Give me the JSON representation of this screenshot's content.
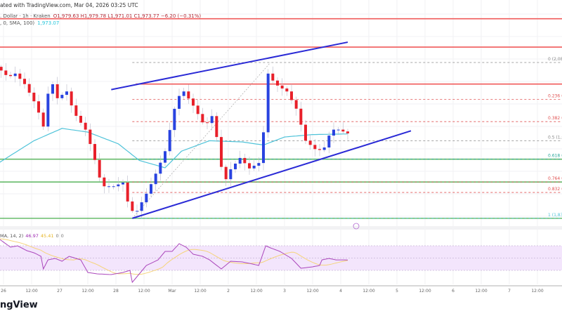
{
  "header": {
    "published": "ated with TradingView.com, Mar 04, 2026 03:25 UTC",
    "symbol": ". Dollar · 1h · Kraken",
    "ohlc": "O1,979.63  H1,979.78  L1,971.01  C1,973.77  −6.20 (−0.31%)",
    "sma_label": ", 0, SMA, 100)",
    "sma_value": "1,973.07"
  },
  "rsi_legend": {
    "label": "MA, 14, 2)",
    "rsi": "46.97",
    "ma": "45.41",
    "v1": "0",
    "v2": "0"
  },
  "logo": "ngView",
  "colors": {
    "up": "#2943e0",
    "down": "#e8202a",
    "sma": "#4fc3d9",
    "trend": "#2a2ad6",
    "resistance": "#f05a5a",
    "support": "#66bb6a",
    "rsi": "#ab47bc",
    "rsi_ma": "#f5d47a",
    "rsi_band": "#f3e5fc"
  },
  "chart_data": {
    "type": "candlestick",
    "timeframe": "1h",
    "x_ticks": [
      "26",
      "12:00",
      "27",
      "12:00",
      "28",
      "12:00",
      "Mar",
      "12:00",
      "2",
      "12:00",
      "3",
      "12:00",
      "4",
      "12:00",
      "5",
      "12:00",
      "6",
      "12:00",
      "7",
      "12:00"
    ],
    "close_path": [
      [
        "2026-02-25T22:00",
        2082
      ],
      [
        "2026-02-26T00:00",
        2076
      ],
      [
        "2026-02-26T03:00",
        2065
      ],
      [
        "2026-02-26T06:00",
        2071
      ],
      [
        "2026-02-26T10:00",
        2054
      ],
      [
        "2026-02-26T15:00",
        2019
      ],
      [
        "2026-02-26T18:00",
        1985
      ],
      [
        "2026-02-26T21:00",
        2065
      ],
      [
        "2026-02-27T00:00",
        2031
      ],
      [
        "2026-02-27T04:00",
        2042
      ],
      [
        "2026-02-27T07:00",
        2008
      ],
      [
        "2026-02-27T12:00",
        1980
      ],
      [
        "2026-02-27T15:00",
        1945
      ],
      [
        "2026-02-27T19:00",
        1888
      ],
      [
        "2026-02-28T00:00",
        1888
      ],
      [
        "2026-02-28T04:00",
        1894
      ],
      [
        "2026-02-28T07:00",
        1848
      ],
      [
        "2026-02-28T10:00",
        1848
      ],
      [
        "2026-02-28T15:00",
        1883
      ],
      [
        "2026-02-28T19:00",
        1917
      ],
      [
        "2026-02-28T22:00",
        1945
      ],
      [
        "2026-03-01T03:00",
        2031
      ],
      [
        "2026-03-01T06:00",
        2042
      ],
      [
        "2026-03-01T10:00",
        2019
      ],
      [
        "2026-03-01T15:00",
        1985
      ],
      [
        "2026-03-01T18:00",
        2002
      ],
      [
        "2026-03-01T21:00",
        1951
      ],
      [
        "2026-03-01T23:00",
        1888
      ],
      [
        "2026-03-02T01:00",
        1911
      ],
      [
        "2026-03-02T06:00",
        1934
      ],
      [
        "2026-03-02T10:00",
        1917
      ],
      [
        "2026-03-02T15:00",
        1928
      ],
      [
        "2026-03-02T18:00",
        2071
      ],
      [
        "2026-03-02T21:00",
        2054
      ],
      [
        "2026-03-03T02:00",
        2042
      ],
      [
        "2026-03-03T06:00",
        2014
      ],
      [
        "2026-03-03T10:00",
        1962
      ],
      [
        "2026-03-03T15:00",
        1945
      ],
      [
        "2026-03-03T18:00",
        1951
      ],
      [
        "2026-03-03T21:00",
        1980
      ],
      [
        "2026-03-04T01:00",
        1980
      ],
      [
        "2026-03-04T03:00",
        1974
      ]
    ],
    "last": {
      "open": 1979.63,
      "high": 1979.78,
      "low": 1971.01,
      "close": 1973.77,
      "change": -6.2,
      "change_pct": -0.31
    },
    "sma100_path": [
      [
        "2026-02-25T22:00",
        1926
      ],
      [
        "2026-02-26T13:00",
        1962
      ],
      [
        "2026-02-27T01:00",
        1982
      ],
      [
        "2026-02-27T12:00",
        1976
      ],
      [
        "2026-02-28T01:00",
        1957
      ],
      [
        "2026-02-28T10:00",
        1930
      ],
      [
        "2026-02-28T21:00",
        1918
      ],
      [
        "2026-03-01T04:00",
        1945
      ],
      [
        "2026-03-01T16:00",
        1962
      ],
      [
        "2026-03-02T06:00",
        1960
      ],
      [
        "2026-03-02T15:00",
        1955
      ],
      [
        "2026-03-03T00:00",
        1968
      ],
      [
        "2026-03-03T12:00",
        1972
      ],
      [
        "2026-03-04T03:00",
        1973
      ]
    ],
    "horizontal_levels": {
      "resistance": [
        2160,
        2114,
        2054
      ],
      "support": [
        1932,
        1895,
        1836
      ]
    },
    "trendlines": [
      {
        "from": [
          "2026-02-27T22:00",
          2045
        ],
        "to": [
          "2026-03-04T03:00",
          2122
        ]
      },
      {
        "from": [
          "2026-02-28T07:00",
          1836
        ],
        "to": [
          "2026-03-05T06:00",
          1978
        ]
      }
    ],
    "fib_retracement": {
      "from": [
        "2026-02-28T07:00",
        1836
      ],
      "to": [
        "2026-03-02T18:00",
        2089
      ],
      "levels": [
        {
          "ratio": "0",
          "price": 2089,
          "label": "0 (2,089",
          "color": "#888888"
        },
        {
          "ratio": "0.236",
          "price": 2029,
          "label": "0.236 (2,029",
          "color": "#e05050"
        },
        {
          "ratio": "0.382",
          "price": 1993,
          "label": "0.382 (1,993",
          "color": "#e05050"
        },
        {
          "ratio": "0.5",
          "price": 1962,
          "label": "0.5 (1,962",
          "color": "#888888"
        },
        {
          "ratio": "0.618",
          "price": 1932,
          "label": "0.618 (1,932",
          "color": "#26a69a"
        },
        {
          "ratio": "0.764",
          "price": 1895,
          "label": "0.764 (1,895",
          "color": "#e05050"
        },
        {
          "ratio": "0.832",
          "price": 1878,
          "label": "0.832 (1,878",
          "color": "#e05050"
        },
        {
          "ratio": "1",
          "price": 1836,
          "label": "1 (1,836",
          "color": "#4fc3d9"
        }
      ]
    },
    "rsi": {
      "period": 14,
      "upper": 70,
      "lower": 30,
      "middle": 50,
      "path": [
        [
          "2026-02-25T22:00",
          81.4
        ],
        [
          "2026-02-26T03:00",
          67.7
        ],
        [
          "2026-02-26T06:00",
          70
        ],
        [
          "2026-02-26T10:00",
          62
        ],
        [
          "2026-02-26T13:00",
          58.6
        ],
        [
          "2026-02-26T16:00",
          52.9
        ],
        [
          "2026-02-26T17:00",
          32.3
        ],
        [
          "2026-02-26T19:00",
          47
        ],
        [
          "2026-02-26T22:00",
          49.4
        ],
        [
          "2026-02-27T01:00",
          44.9
        ],
        [
          "2026-02-27T04:00",
          52.9
        ],
        [
          "2026-02-27T09:00",
          47
        ],
        [
          "2026-02-27T12:00",
          26.6
        ],
        [
          "2026-02-27T16:00",
          24.3
        ],
        [
          "2026-02-27T22:00",
          23.1
        ],
        [
          "2026-02-28T03:00",
          26.6
        ],
        [
          "2026-02-28T06:00",
          30
        ],
        [
          "2026-02-28T07:00",
          10.6
        ],
        [
          "2026-02-28T10:00",
          24.3
        ],
        [
          "2026-02-28T13:00",
          38
        ],
        [
          "2026-02-28T18:00",
          47
        ],
        [
          "2026-02-28T21:00",
          60.9
        ],
        [
          "2026-03-01T00:00",
          60.9
        ],
        [
          "2026-03-01T03:00",
          73.4
        ],
        [
          "2026-03-01T06:00",
          67.7
        ],
        [
          "2026-03-01T09:00",
          56.3
        ],
        [
          "2026-03-01T13:00",
          52.9
        ],
        [
          "2026-03-01T16:00",
          47
        ],
        [
          "2026-03-01T21:00",
          32.3
        ],
        [
          "2026-03-02T01:00",
          44.9
        ],
        [
          "2026-03-02T06:00",
          43.7
        ],
        [
          "2026-03-02T09:00",
          41.4
        ],
        [
          "2026-03-02T13:00",
          38
        ],
        [
          "2026-03-02T16:00",
          70
        ],
        [
          "2026-03-02T18:00",
          66.6
        ],
        [
          "2026-03-02T22:00",
          60.9
        ],
        [
          "2026-03-03T03:00",
          49.4
        ],
        [
          "2026-03-03T07:00",
          33.4
        ],
        [
          "2026-03-03T12:00",
          35.7
        ],
        [
          "2026-03-03T15:00",
          38
        ],
        [
          "2026-03-03T16:00",
          47
        ],
        [
          "2026-03-03T19:00",
          49.4
        ],
        [
          "2026-03-03T22:00",
          47
        ],
        [
          "2026-03-04T03:00",
          46.97
        ]
      ]
    }
  }
}
